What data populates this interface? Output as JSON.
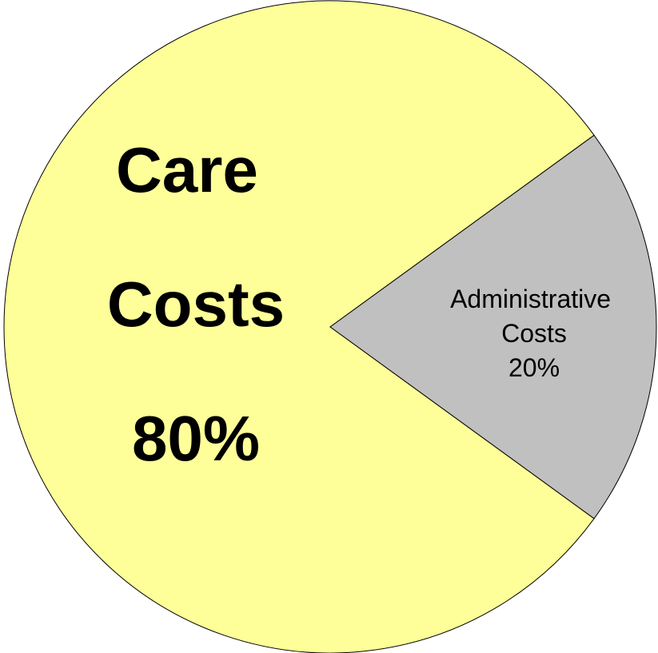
{
  "chart_data": {
    "type": "pie",
    "categories": [
      "Care Costs",
      "Administrative Costs"
    ],
    "values": [
      80,
      20
    ],
    "value_labels": [
      "80%",
      "20%"
    ],
    "colors": [
      "#ffff99",
      "#c0c0c0"
    ]
  }
}
